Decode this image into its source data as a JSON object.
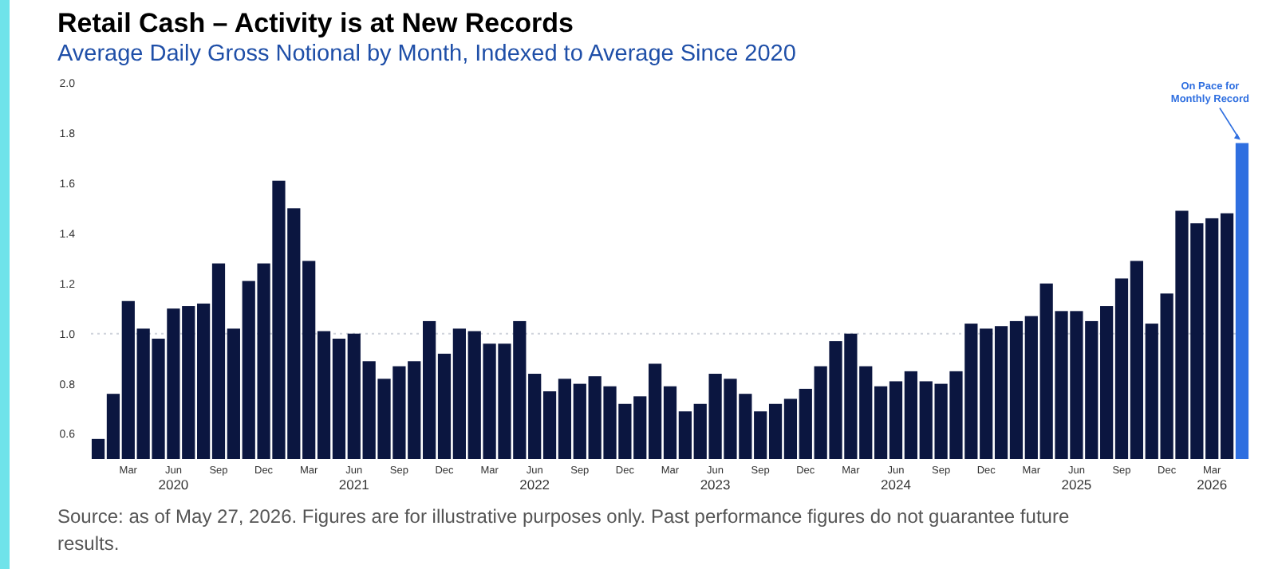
{
  "chart_data": {
    "type": "bar",
    "title": "Retail Cash – Activity is at New Records",
    "subtitle": "Average Daily Gross Notional by Month, Indexed to Average Since 2020",
    "categories": [
      null,
      null,
      "Mar",
      null,
      null,
      "Jun\n2020",
      null,
      null,
      "Sep",
      null,
      null,
      "Dec",
      null,
      null,
      "Mar",
      null,
      null,
      "Jun\n2021",
      null,
      null,
      "Sep",
      null,
      null,
      "Dec",
      null,
      null,
      "Mar",
      null,
      null,
      "Jun\n2022",
      null,
      null,
      "Sep",
      null,
      null,
      "Dec",
      null,
      null,
      "Mar",
      null,
      null,
      "Jun\n2023",
      null,
      null,
      "Sep",
      null,
      null,
      "Dec",
      null,
      null,
      "Mar",
      null,
      null,
      "Jun\n2024",
      null,
      null,
      "Sep",
      null,
      null,
      "Dec",
      null,
      null,
      "Mar",
      null,
      null,
      "Jun\n2025",
      null,
      null,
      "Sep",
      null,
      null,
      "Dec",
      null,
      null,
      "Mar\n2026",
      null,
      null
    ],
    "values": [
      0.58,
      0.76,
      1.13,
      1.02,
      0.98,
      1.1,
      1.11,
      1.12,
      1.28,
      1.02,
      1.21,
      1.28,
      1.61,
      1.5,
      1.29,
      1.01,
      0.98,
      1.0,
      0.89,
      0.82,
      0.87,
      0.89,
      1.05,
      0.92,
      1.02,
      1.01,
      0.96,
      0.96,
      1.05,
      0.84,
      0.77,
      0.82,
      0.8,
      0.83,
      0.79,
      0.72,
      0.75,
      0.88,
      0.79,
      0.69,
      0.72,
      0.84,
      0.82,
      0.76,
      0.69,
      0.72,
      0.74,
      0.78,
      0.87,
      0.97,
      1.0,
      0.87,
      0.79,
      0.81,
      0.85,
      0.81,
      0.8,
      0.85,
      1.04,
      1.02,
      1.03,
      1.05,
      1.07,
      1.2,
      1.09,
      1.09,
      1.05,
      1.11,
      1.22,
      1.29,
      1.04,
      1.16,
      1.49,
      1.44,
      1.46,
      1.48,
      1.76
    ],
    "colors": [
      "#0b1640",
      "#0b1640",
      "#0b1640",
      "#0b1640",
      "#0b1640",
      "#0b1640",
      "#0b1640",
      "#0b1640",
      "#0b1640",
      "#0b1640",
      "#0b1640",
      "#0b1640",
      "#0b1640",
      "#0b1640",
      "#0b1640",
      "#0b1640",
      "#0b1640",
      "#0b1640",
      "#0b1640",
      "#0b1640",
      "#0b1640",
      "#0b1640",
      "#0b1640",
      "#0b1640",
      "#0b1640",
      "#0b1640",
      "#0b1640",
      "#0b1640",
      "#0b1640",
      "#0b1640",
      "#0b1640",
      "#0b1640",
      "#0b1640",
      "#0b1640",
      "#0b1640",
      "#0b1640",
      "#0b1640",
      "#0b1640",
      "#0b1640",
      "#0b1640",
      "#0b1640",
      "#0b1640",
      "#0b1640",
      "#0b1640",
      "#0b1640",
      "#0b1640",
      "#0b1640",
      "#0b1640",
      "#0b1640",
      "#0b1640",
      "#0b1640",
      "#0b1640",
      "#0b1640",
      "#0b1640",
      "#0b1640",
      "#0b1640",
      "#0b1640",
      "#0b1640",
      "#0b1640",
      "#0b1640",
      "#0b1640",
      "#0b1640",
      "#0b1640",
      "#0b1640",
      "#0b1640",
      "#0b1640",
      "#0b1640",
      "#0b1640",
      "#0b1640",
      "#0b1640",
      "#0b1640",
      "#0b1640",
      "#0b1640",
      "#0b1640",
      "#0b1640",
      "#0b1640",
      "#2f6fe0"
    ],
    "ylim": [
      0.5,
      2.0
    ],
    "yticks": [
      0.6,
      0.8,
      {
        "value": 1,
        "label": "1.0"
      },
      1.2,
      1.4,
      1.6,
      1.8,
      {
        "value": 2,
        "label": "2.0"
      }
    ],
    "grid": false,
    "ref_lines": [
      {
        "axis": "y",
        "value": 1,
        "color": "#d0d4dc",
        "line_style": "dotted"
      }
    ],
    "annotations": [
      "On Pace for\nMonthly Record",
      "Source: as of May 27, 2026. Figures are for illustrative purposes only. Past performance figures do not guarantee future results."
    ]
  }
}
